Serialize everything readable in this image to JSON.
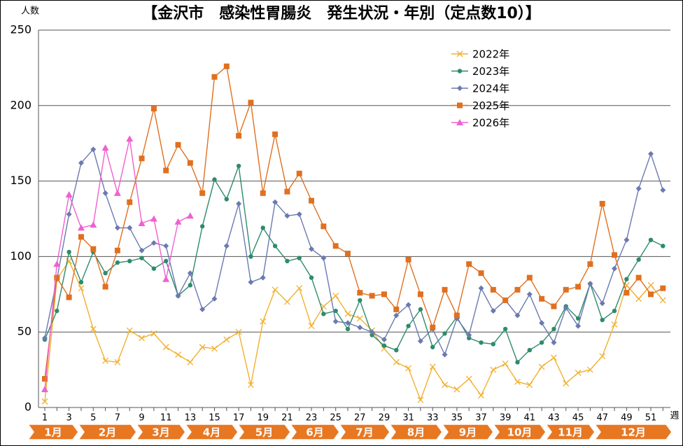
{
  "chart_data": {
    "type": "line",
    "title": "【金沢市　感染性胃腸炎　発生状況・年別（定点数10）】",
    "y_label": "人数",
    "x_label": "週",
    "categories": [
      1,
      null,
      3,
      null,
      5,
      null,
      7,
      null,
      9,
      null,
      11,
      null,
      13,
      null,
      15,
      null,
      17,
      null,
      19,
      null,
      21,
      null,
      23,
      null,
      25,
      null,
      27,
      null,
      29,
      null,
      31,
      null,
      33,
      null,
      35,
      null,
      37,
      null,
      39,
      null,
      41,
      null,
      43,
      null,
      45,
      null,
      47,
      null,
      49,
      null,
      51,
      null
    ],
    "months": [
      "1月",
      "2月",
      "3月",
      "4月",
      "5月",
      "6月",
      "7月",
      "8月",
      "9月",
      "10月",
      "11月",
      "12月"
    ],
    "ylim": [
      0,
      250
    ],
    "yticks": [
      0,
      50,
      100,
      150,
      200,
      250
    ],
    "grid": true,
    "series": [
      {
        "name": "2022年",
        "color": "#f0b030",
        "marker": "x",
        "values": [
          4,
          85,
          97,
          79,
          52,
          31,
          30,
          51,
          46,
          49,
          40,
          35,
          30,
          40,
          39,
          45,
          50,
          15,
          57,
          78,
          70,
          79,
          54,
          67,
          74,
          62,
          59,
          51,
          39,
          30,
          26,
          5,
          27,
          15,
          12,
          19,
          8,
          25,
          29,
          17,
          15,
          27,
          33,
          16,
          23,
          25,
          34,
          55,
          81,
          72,
          81,
          71
        ]
      },
      {
        "name": "2023年",
        "color": "#2e8b6b",
        "marker": "circle",
        "values": [
          45,
          64,
          103,
          83,
          103,
          89,
          96,
          97,
          99,
          92,
          97,
          74,
          81,
          120,
          151,
          138,
          160,
          100,
          119,
          107,
          97,
          99,
          86,
          62,
          64,
          52,
          71,
          48,
          41,
          38,
          54,
          65,
          40,
          49,
          60,
          46,
          43,
          42,
          52,
          30,
          38,
          43,
          52,
          67,
          59,
          82,
          58,
          64,
          85,
          98,
          111,
          107
        ]
      },
      {
        "name": "2024年",
        "color": "#6a7ab0",
        "marker": "diamond",
        "values": [
          46,
          85,
          128,
          162,
          171,
          142,
          119,
          119,
          104,
          109,
          107,
          74,
          89,
          65,
          72,
          107,
          135,
          83,
          86,
          136,
          127,
          128,
          105,
          99,
          57,
          56,
          53,
          50,
          45,
          61,
          68,
          44,
          52,
          35,
          59,
          48,
          79,
          64,
          71,
          61,
          75,
          56,
          43,
          66,
          54,
          82,
          69,
          92,
          111,
          145,
          168,
          144
        ]
      },
      {
        "name": "2025年",
        "color": "#e07020",
        "marker": "square",
        "values": [
          19,
          86,
          73,
          113,
          105,
          80,
          104,
          136,
          165,
          198,
          157,
          174,
          162,
          142,
          219,
          226,
          180,
          202,
          142,
          181,
          143,
          155,
          137,
          120,
          107,
          102,
          76,
          74,
          75,
          65,
          98,
          75,
          53,
          78,
          61,
          95,
          89,
          78,
          71,
          78,
          86,
          72,
          67,
          78,
          80,
          95,
          135,
          101,
          76,
          86,
          75,
          79
        ]
      },
      {
        "name": "2026年",
        "color": "#f060d0",
        "marker": "triangle",
        "values": [
          12,
          95,
          141,
          119,
          121,
          172,
          142,
          178,
          122,
          125,
          85,
          123,
          127,
          null,
          null,
          null,
          null,
          null,
          null,
          null,
          null,
          null,
          null,
          null,
          null,
          null,
          null,
          null,
          null,
          null,
          null,
          null,
          null,
          null,
          null,
          null,
          null,
          null,
          null,
          null,
          null,
          null,
          null,
          null,
          null,
          null,
          null,
          null,
          null,
          null,
          null,
          null
        ]
      }
    ]
  }
}
